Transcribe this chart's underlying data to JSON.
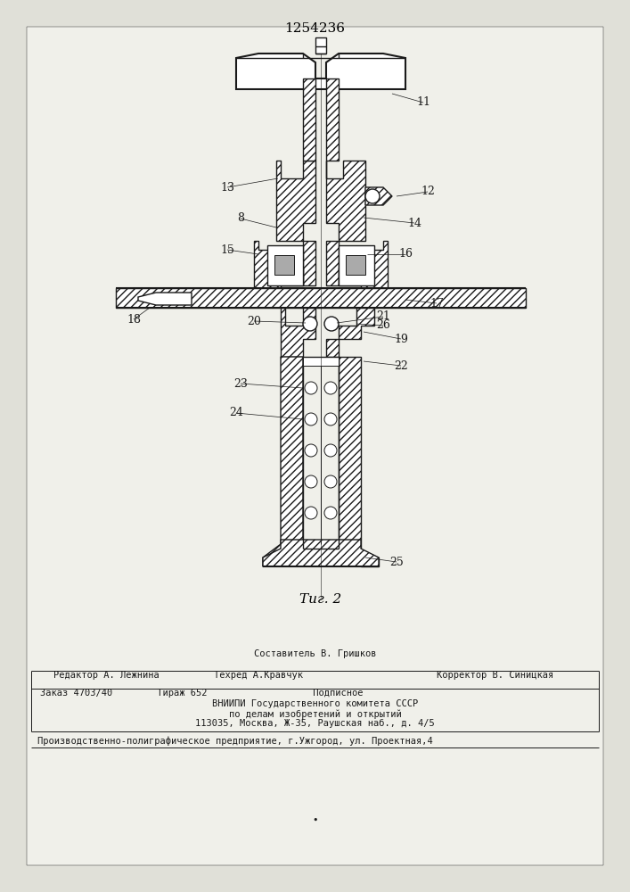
{
  "patent_number": "1254236",
  "fig_label": "Τиг. 2",
  "bg_color": "#e0e0d8",
  "line_color": "#1a1a1a",
  "body_fontsize": 8,
  "footer_fontsize": 7.5,
  "footer": {
    "line1_center": "Составитель В. Гришков",
    "line2_left": "Редактор А. Лежнина",
    "line2_mid": "Техред А.Кравчук",
    "line2_right": "Корректор В. Синицкая",
    "order_line": "Заказ 4703/40        Тираж 652                   Подписное",
    "inst1": "ВНИИПИ Государственного комитета СССР",
    "inst2": "по делам изобретений и открытий",
    "inst3": "113035, Москва, Ж-35, Раушская наб., д. 4/5",
    "printer": "Производственно-полиграфическое предприятие, г.Ужгород, ул. Проектная,4"
  }
}
